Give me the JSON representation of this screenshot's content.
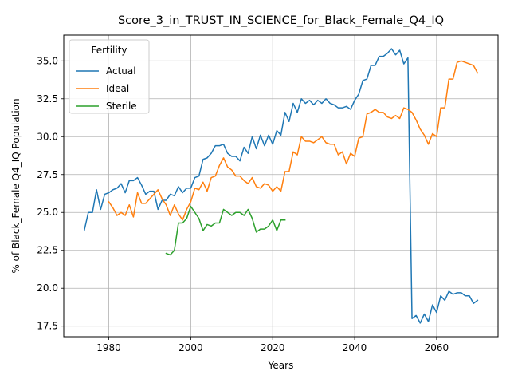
{
  "chart_data": {
    "type": "line",
    "title": "Score_3_in_TRUST_IN_SCIENCE_for_Black_Female_Q4_IQ",
    "xlabel": "Years",
    "ylabel": "% of Black_Female Q4_IQ Population",
    "xlim": [
      1969,
      2075
    ],
    "ylim": [
      16.8,
      36.7
    ],
    "xticks": [
      1980,
      2000,
      2020,
      2040,
      2060
    ],
    "yticks": [
      17.5,
      20.0,
      22.5,
      25.0,
      27.5,
      30.0,
      32.5,
      35.0
    ],
    "grid": true,
    "legend": {
      "title": "Fertility",
      "placement": "upper left"
    },
    "series": [
      {
        "name": "Actual",
        "color": "#1f77b4",
        "x": [
          1974,
          1975,
          1976,
          1977,
          1978,
          1979,
          1980,
          1981,
          1982,
          1983,
          1984,
          1985,
          1986,
          1987,
          1988,
          1989,
          1990,
          1991,
          1992,
          1993,
          1994,
          1995,
          1996,
          1997,
          1998,
          1999,
          2000,
          2001,
          2002,
          2003,
          2004,
          2005,
          2006,
          2007,
          2008,
          2009,
          2010,
          2011,
          2012,
          2013,
          2014,
          2015,
          2016,
          2017,
          2018,
          2019,
          2020,
          2021,
          2022,
          2023,
          2024,
          2025,
          2026,
          2027,
          2028,
          2029,
          2030,
          2031,
          2032,
          2033,
          2034,
          2035,
          2036,
          2037,
          2038,
          2039,
          2040,
          2041,
          2042,
          2043,
          2044,
          2045,
          2046,
          2047,
          2048,
          2049,
          2050,
          2051,
          2052,
          2053,
          2054,
          2055,
          2056,
          2057,
          2058,
          2059,
          2060,
          2061,
          2062,
          2063,
          2064,
          2065,
          2066,
          2067,
          2068,
          2069,
          2070
        ],
        "y": [
          23.8,
          25.0,
          25.0,
          26.5,
          25.2,
          26.2,
          26.3,
          26.5,
          26.6,
          26.9,
          26.3,
          27.1,
          27.1,
          27.3,
          26.8,
          26.2,
          26.4,
          26.4,
          25.2,
          25.8,
          25.8,
          26.2,
          26.1,
          26.7,
          26.3,
          26.6,
          26.6,
          27.3,
          27.4,
          28.5,
          28.6,
          28.9,
          29.4,
          29.4,
          29.5,
          28.9,
          28.7,
          28.7,
          28.4,
          29.3,
          28.9,
          30.0,
          29.2,
          30.1,
          29.4,
          30.1,
          29.5,
          30.4,
          30.1,
          31.6,
          31.0,
          32.2,
          31.6,
          32.5,
          32.2,
          32.4,
          32.1,
          32.4,
          32.2,
          32.5,
          32.2,
          32.1,
          31.9,
          31.9,
          32.0,
          31.8,
          32.4,
          32.8,
          33.7,
          33.8,
          34.7,
          34.7,
          35.3,
          35.3,
          35.5,
          35.8,
          35.4,
          35.7,
          34.8,
          35.2,
          18.0,
          18.2,
          17.7,
          18.3,
          17.8,
          18.9,
          18.4,
          19.5,
          19.2,
          19.8,
          19.6,
          19.7,
          19.7,
          19.5,
          19.5,
          19.0,
          19.2
        ]
      },
      {
        "name": "Ideal",
        "color": "#ff7f0e",
        "x": [
          1980,
          1981,
          1982,
          1983,
          1984,
          1985,
          1986,
          1987,
          1988,
          1989,
          1990,
          1991,
          1992,
          1993,
          1994,
          1995,
          1996,
          1997,
          1998,
          1999,
          2000,
          2001,
          2002,
          2003,
          2004,
          2005,
          2006,
          2007,
          2008,
          2009,
          2010,
          2011,
          2012,
          2013,
          2014,
          2015,
          2016,
          2017,
          2018,
          2019,
          2020,
          2021,
          2022,
          2023,
          2024,
          2025,
          2026,
          2027,
          2028,
          2029,
          2030,
          2031,
          2032,
          2033,
          2034,
          2035,
          2036,
          2037,
          2038,
          2039,
          2040,
          2041,
          2042,
          2043,
          2044,
          2045,
          2046,
          2047,
          2048,
          2049,
          2050,
          2051,
          2052,
          2053,
          2054,
          2055,
          2056,
          2057,
          2058,
          2059,
          2060,
          2061,
          2062,
          2063,
          2064,
          2065,
          2066,
          2067,
          2068,
          2069,
          2070
        ],
        "y": [
          25.7,
          25.3,
          24.8,
          25.0,
          24.8,
          25.5,
          24.7,
          26.3,
          25.6,
          25.6,
          25.9,
          26.2,
          26.5,
          25.9,
          25.5,
          24.8,
          25.5,
          24.9,
          24.5,
          25.2,
          25.7,
          26.6,
          26.5,
          27.0,
          26.4,
          27.3,
          27.4,
          28.1,
          28.6,
          28.0,
          27.8,
          27.4,
          27.4,
          27.1,
          26.9,
          27.3,
          26.7,
          26.6,
          26.9,
          26.8,
          26.4,
          26.7,
          26.4,
          27.7,
          27.7,
          29.0,
          28.8,
          30.0,
          29.7,
          29.7,
          29.6,
          29.8,
          30.0,
          29.6,
          29.5,
          29.5,
          28.8,
          29.0,
          28.2,
          28.9,
          28.7,
          29.9,
          30.0,
          31.5,
          31.6,
          31.8,
          31.6,
          31.6,
          31.3,
          31.2,
          31.4,
          31.2,
          31.9,
          31.8,
          31.6,
          31.1,
          30.5,
          30.1,
          29.5,
          30.2,
          30.0,
          31.9,
          31.9,
          33.8,
          33.8,
          34.9,
          35.0,
          34.9,
          34.8,
          34.7,
          34.2
        ]
      },
      {
        "name": "Sterile",
        "color": "#2ca02c",
        "x": [
          1994,
          1995,
          1996,
          1997,
          1998,
          1999,
          2000,
          2001,
          2002,
          2003,
          2004,
          2005,
          2006,
          2007,
          2008,
          2009,
          2010,
          2011,
          2012,
          2013,
          2014,
          2015,
          2016,
          2017,
          2018,
          2019,
          2020,
          2021,
          2022,
          2023
        ],
        "y": [
          22.3,
          22.2,
          22.5,
          24.3,
          24.3,
          24.6,
          25.4,
          25.0,
          24.6,
          23.8,
          24.2,
          24.1,
          24.3,
          24.3,
          25.2,
          25.0,
          24.8,
          25.0,
          25.0,
          24.8,
          25.2,
          24.6,
          23.7,
          23.9,
          23.9,
          24.1,
          24.5,
          23.8,
          24.5,
          24.5
        ]
      }
    ]
  }
}
